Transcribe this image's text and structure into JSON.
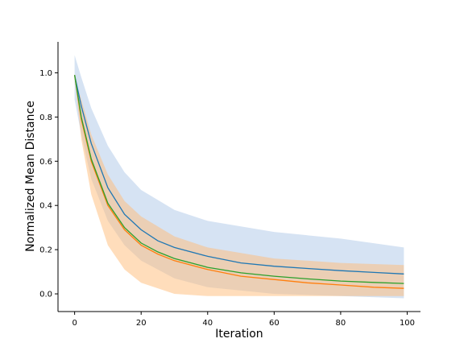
{
  "chart_data": {
    "type": "line",
    "xlabel": "Iteration",
    "ylabel": "Normalized Mean Distance",
    "xlim": [
      -5,
      104
    ],
    "ylim": [
      -0.08,
      1.14
    ],
    "xticks": [
      0,
      20,
      40,
      60,
      80,
      100
    ],
    "yticks": [
      0.0,
      0.2,
      0.4,
      0.6,
      0.8,
      1.0
    ],
    "xtick_labels": [
      "0",
      "20",
      "40",
      "60",
      "80",
      "100"
    ],
    "ytick_labels": [
      "0.0",
      "0.2",
      "0.4",
      "0.6",
      "0.8",
      "1.0"
    ],
    "grid": false,
    "legend": "none",
    "bands": [
      {
        "color": "#aec7e8",
        "opacity": 0.5,
        "x": [
          0,
          2,
          5,
          10,
          15,
          20,
          30,
          40,
          60,
          80,
          99
        ],
        "upper": [
          1.08,
          0.98,
          0.84,
          0.67,
          0.55,
          0.47,
          0.38,
          0.33,
          0.28,
          0.25,
          0.21
        ],
        "lower": [
          0.88,
          0.72,
          0.52,
          0.33,
          0.22,
          0.15,
          0.07,
          0.03,
          0.0,
          -0.01,
          -0.02
        ]
      },
      {
        "color": "#ffbb78",
        "opacity": 0.5,
        "x": [
          0,
          2,
          5,
          10,
          15,
          20,
          30,
          40,
          60,
          80,
          99
        ],
        "upper": [
          0.98,
          0.88,
          0.72,
          0.54,
          0.42,
          0.35,
          0.26,
          0.21,
          0.16,
          0.14,
          0.13
        ],
        "lower": [
          0.98,
          0.7,
          0.45,
          0.22,
          0.11,
          0.05,
          0.0,
          -0.01,
          -0.01,
          -0.01,
          -0.01
        ]
      }
    ],
    "series": [
      {
        "color": "#1f77b4",
        "x": [
          0,
          2,
          5,
          10,
          15,
          20,
          25,
          30,
          40,
          50,
          60,
          70,
          80,
          90,
          99
        ],
        "values": [
          0.99,
          0.85,
          0.68,
          0.48,
          0.36,
          0.29,
          0.24,
          0.21,
          0.17,
          0.14,
          0.125,
          0.115,
          0.105,
          0.097,
          0.09
        ]
      },
      {
        "color": "#ff7f0e",
        "x": [
          0,
          2,
          5,
          10,
          15,
          20,
          25,
          30,
          40,
          50,
          60,
          70,
          80,
          90,
          99
        ],
        "values": [
          0.99,
          0.79,
          0.6,
          0.4,
          0.29,
          0.22,
          0.18,
          0.15,
          0.11,
          0.08,
          0.065,
          0.05,
          0.04,
          0.03,
          0.025
        ]
      },
      {
        "color": "#2ca02c",
        "x": [
          0,
          2,
          5,
          10,
          15,
          20,
          25,
          30,
          40,
          50,
          60,
          70,
          80,
          90,
          99
        ],
        "values": [
          0.99,
          0.8,
          0.61,
          0.41,
          0.3,
          0.23,
          0.19,
          0.16,
          0.12,
          0.095,
          0.08,
          0.068,
          0.058,
          0.052,
          0.047
        ]
      }
    ]
  }
}
